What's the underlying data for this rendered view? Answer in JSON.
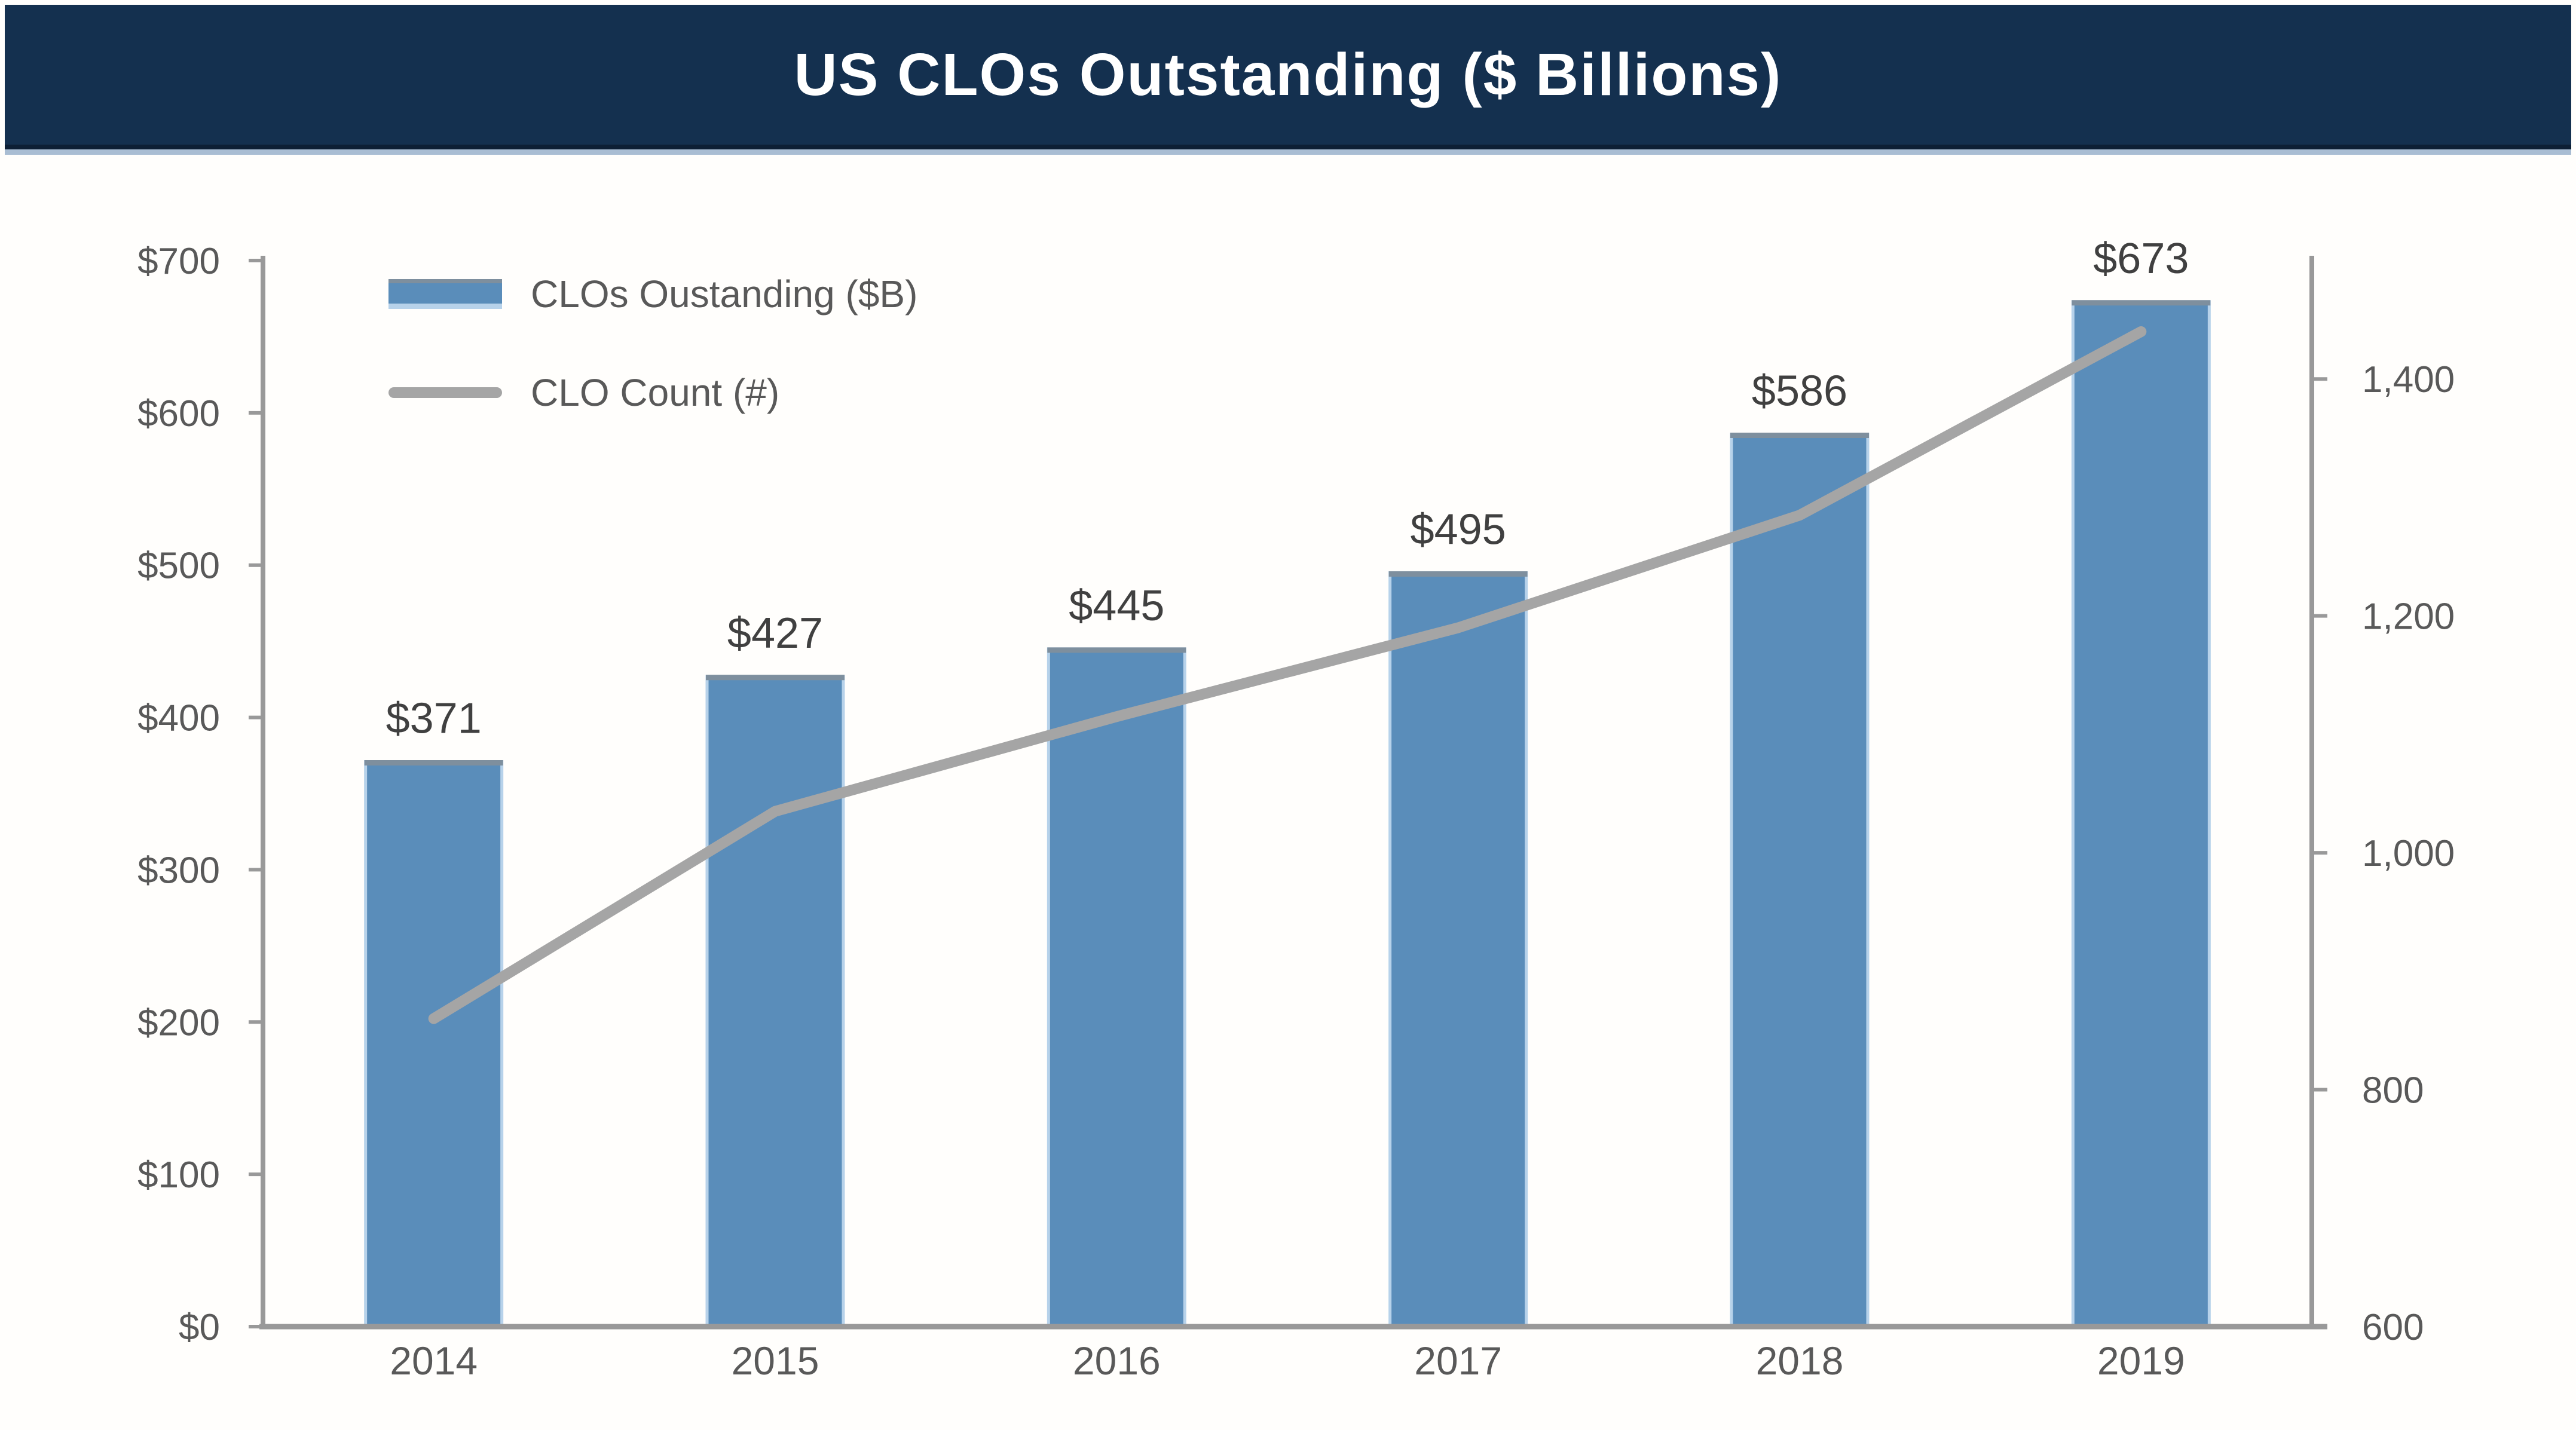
{
  "header": {
    "title": "US CLOs Outstanding ($ Billions)"
  },
  "legend": {
    "items": [
      {
        "swatch": "bar-swatch",
        "label": "CLOs Oustanding ($B)"
      },
      {
        "swatch": "line-swatch",
        "label": "CLO Count (#)"
      }
    ]
  },
  "chart_data": {
    "type": "bar",
    "title": "US CLOs Outstanding ($ Billions)",
    "categories": [
      "2014",
      "2015",
      "2016",
      "2017",
      "2018",
      "2019"
    ],
    "series": [
      {
        "name": "CLOs Oustanding ($B)",
        "type": "bar",
        "axis": "left",
        "values": [
          371,
          427,
          445,
          495,
          586,
          673
        ],
        "data_labels": [
          "$371",
          "$427",
          "$445",
          "$495",
          "$586",
          "$673"
        ]
      },
      {
        "name": "CLO Count (#)",
        "type": "line",
        "axis": "right",
        "values": [
          860,
          1035,
          1115,
          1190,
          1285,
          1440
        ]
      }
    ],
    "left_axis": {
      "min": 0,
      "max": 700,
      "ticks": [
        0,
        100,
        200,
        300,
        400,
        500,
        600,
        700
      ],
      "tick_labels": [
        "$0",
        "$100",
        "$200",
        "$300",
        "$400",
        "$500",
        "$600",
        "$700"
      ]
    },
    "right_axis": {
      "min": 600,
      "max": 1500,
      "ticks": [
        600,
        800,
        1000,
        1200,
        1400
      ],
      "tick_labels": [
        "600",
        "800",
        "1,000",
        "1,200",
        "1,400"
      ]
    },
    "grid": false,
    "legend_position": "top-left"
  },
  "colors": {
    "header_bg": "#14304f",
    "header_text": "#ffffff",
    "rule_dark": "#0d1f35",
    "rule_light": "#a9bdd3",
    "bar_fill": "#5a8dba",
    "bar_edge_light": "#b7d2ea",
    "bar_edge_top": "#7e8f9e",
    "line": "#a5a5a5",
    "axis": "#999999",
    "bar_label_text": "#404040",
    "tick_text": "#595959",
    "legend_text": "#595959"
  }
}
